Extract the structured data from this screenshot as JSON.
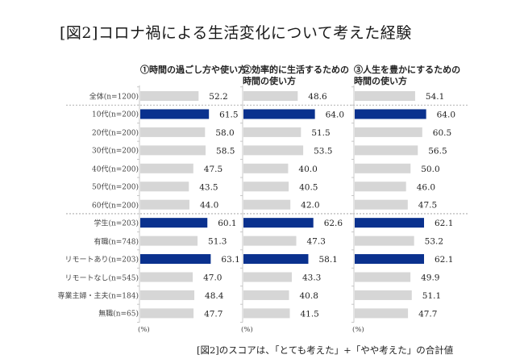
{
  "title": "[図2]コロナ禍による生活変化について考えた経験",
  "footnote": "[図2]のスコアは、「とても考えた」+「やや考えた」の合計値",
  "colors": {
    "highlight": "#0a318e",
    "normal": "#d6d6d6",
    "axis": "#bbbbbb",
    "separator": "#999999"
  },
  "chart_data": {
    "type": "bar",
    "orientation": "horizontal",
    "title": "[図2]コロナ禍による生活変化について考えた経験",
    "unit_label": "(%)",
    "xlim": [
      0,
      100
    ],
    "categories": [
      "全体(n=1200)",
      "10代(n=200)",
      "20代(n=200)",
      "30代(n=200)",
      "40代(n=200)",
      "50代(n=200)",
      "60代(n=200)",
      "学生(n=203)",
      "有職(n=748)",
      "リモートあり(n=203)",
      "リモートなし(n=545)",
      "専業主婦・主夫(n=184)",
      "無職(n=65)"
    ],
    "group_separators_after": [
      "全体(n=1200)",
      "60代(n=200)"
    ],
    "series": [
      {
        "name": "①時間の過ごし方や使い方",
        "values": [
          52.2,
          61.5,
          58.0,
          58.5,
          47.5,
          43.5,
          44.0,
          60.1,
          51.3,
          63.1,
          47.0,
          48.4,
          47.7
        ],
        "highlighted": [
          false,
          true,
          false,
          false,
          false,
          false,
          false,
          true,
          false,
          true,
          false,
          false,
          false
        ]
      },
      {
        "name": "②効率的に生活するための時間の使い方",
        "values": [
          48.6,
          64.0,
          51.5,
          53.5,
          40.0,
          40.5,
          42.0,
          62.6,
          47.3,
          58.1,
          43.3,
          40.8,
          41.5
        ],
        "highlighted": [
          false,
          true,
          false,
          false,
          false,
          false,
          false,
          true,
          false,
          true,
          false,
          false,
          false
        ]
      },
      {
        "name": "③人生を豊かにするための時間の使い方",
        "values": [
          54.1,
          64.0,
          60.5,
          56.5,
          50.0,
          46.0,
          47.5,
          62.1,
          53.2,
          62.1,
          49.9,
          51.1,
          47.7
        ],
        "highlighted": [
          false,
          true,
          false,
          false,
          false,
          false,
          false,
          true,
          false,
          true,
          false,
          false,
          false
        ]
      }
    ]
  }
}
